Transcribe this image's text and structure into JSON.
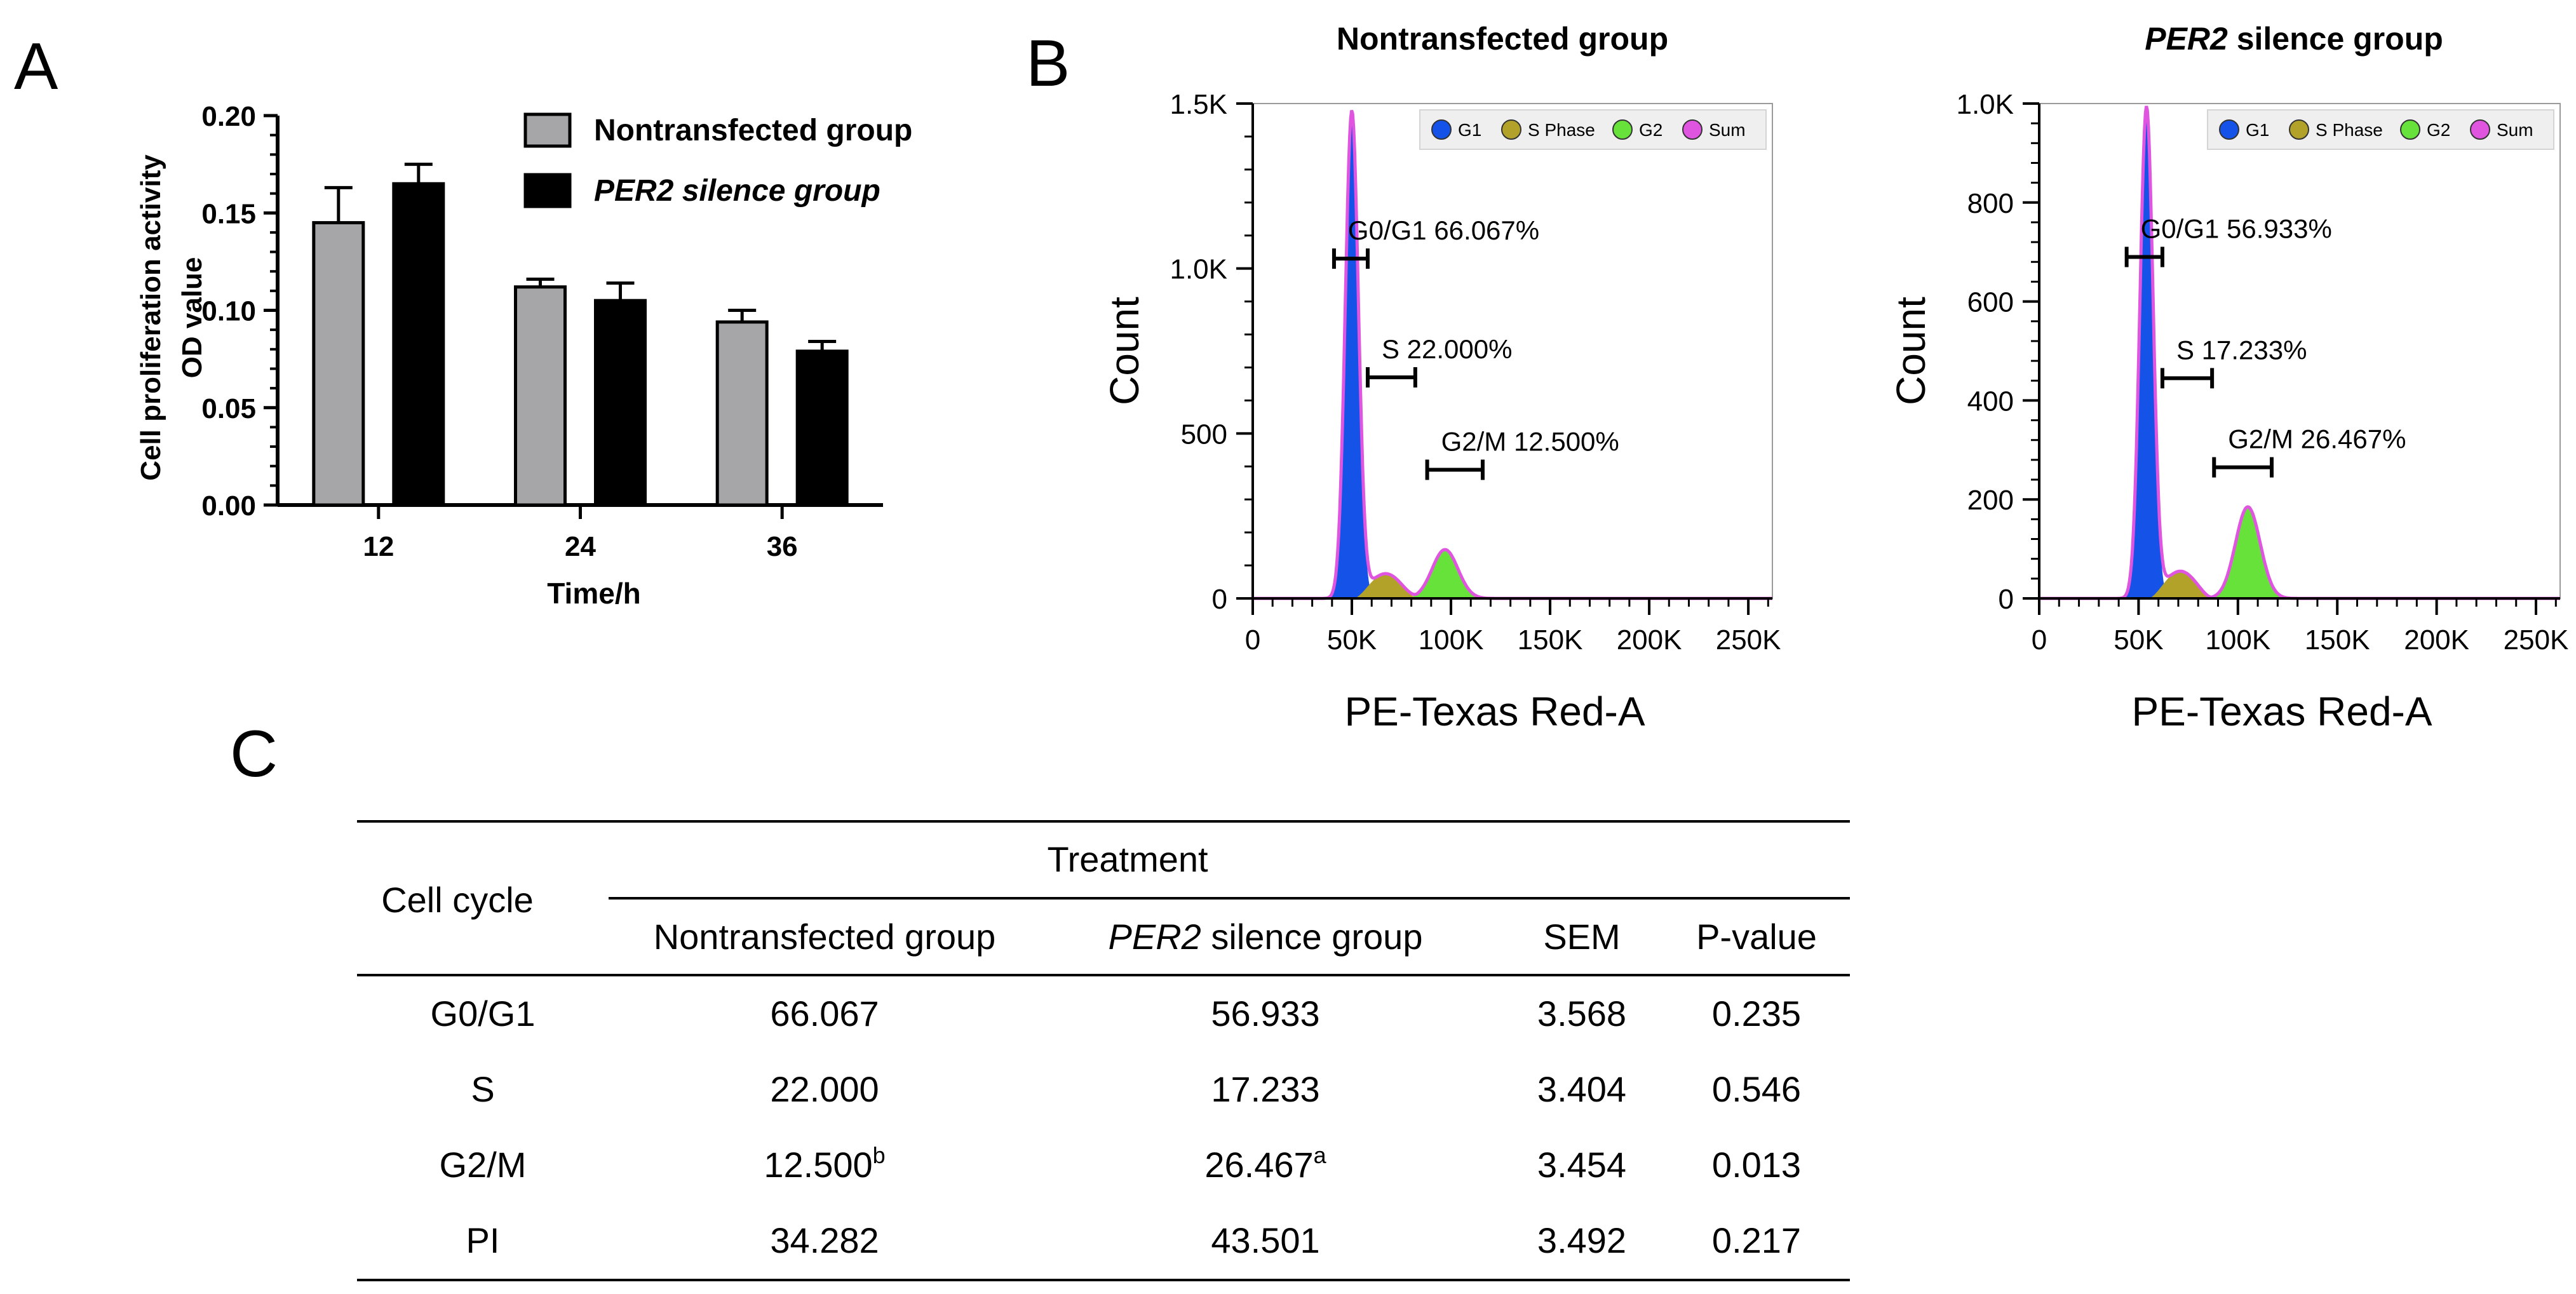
{
  "panels": {
    "a": "A",
    "b": "B",
    "c": "C"
  },
  "chart_data": [
    {
      "type": "bar",
      "panel": "A",
      "categories": [
        "12",
        "24",
        "36"
      ],
      "series": [
        {
          "name": "Nontransfected group",
          "values": [
            0.145,
            0.112,
            0.094
          ],
          "errors": [
            0.018,
            0.004,
            0.006
          ],
          "color": "#a6a6a8"
        },
        {
          "name": "PER2 silence group",
          "values": [
            0.165,
            0.105,
            0.079
          ],
          "errors": [
            0.01,
            0.009,
            0.005
          ],
          "color": "#000000"
        }
      ],
      "title": "",
      "xlabel": "Time/h",
      "ylabel_line1": "Cell proliferation activity",
      "ylabel_line2": "OD value",
      "ylim": [
        0,
        0.2
      ],
      "yticks": [
        "0.00",
        "0.05",
        "0.10",
        "0.15",
        "0.20"
      ],
      "legend_position": "top-right"
    },
    {
      "type": "area",
      "panel": "B-left",
      "title": "Nontransfected group",
      "xlabel": "PE-Texas Red-A",
      "ylabel": "Count",
      "xlim": [
        0,
        262144
      ],
      "ylim": [
        0,
        1500
      ],
      "xticks": [
        0,
        50000,
        100000,
        150000,
        200000,
        250000
      ],
      "xtick_labels": [
        "0",
        "50K",
        "100K",
        "150K",
        "200K",
        "250K"
      ],
      "yticks": [
        0,
        500,
        1000,
        1500
      ],
      "ytick_labels": [
        "0",
        "500",
        "1.0K",
        "1.5K"
      ],
      "legend": [
        "G1",
        "S Phase",
        "G2",
        "Sum"
      ],
      "g1": {
        "mean": 50000,
        "sd": 3300,
        "peak": 1480
      },
      "s": {
        "center": 67000,
        "halfwidth": 16000,
        "peak": 75
      },
      "g2": {
        "mean": 97000,
        "sd": 6500,
        "peak": 148
      },
      "annotations": [
        {
          "label": "G0/G1  66.067%",
          "x1": 41000,
          "x2": 58000,
          "y": 1030
        },
        {
          "label": "S 22.000%",
          "x1": 58000,
          "x2": 82000,
          "y": 670
        },
        {
          "label": "G2/M  12.500%",
          "x1": 88000,
          "x2": 116000,
          "y": 390
        }
      ]
    },
    {
      "type": "area",
      "panel": "B-right",
      "title_italic": "PER2",
      "title": " silence group",
      "xlabel": "PE-Texas Red-A",
      "ylabel": "Count",
      "xlim": [
        0,
        262144
      ],
      "ylim": [
        0,
        1000
      ],
      "xticks": [
        0,
        50000,
        100000,
        150000,
        200000,
        250000
      ],
      "xtick_labels": [
        "0",
        "50K",
        "100K",
        "150K",
        "200K",
        "250K"
      ],
      "yticks": [
        0,
        200,
        400,
        600,
        800,
        1000
      ],
      "ytick_labels": [
        "0",
        "200",
        "400",
        "600",
        "800",
        "1.0K"
      ],
      "legend": [
        "G1",
        "S Phase",
        "G2",
        "Sum"
      ],
      "g1": {
        "mean": 54000,
        "sd": 3300,
        "peak": 995
      },
      "s": {
        "center": 71000,
        "halfwidth": 16000,
        "peak": 55
      },
      "g2": {
        "mean": 105000,
        "sd": 6200,
        "peak": 185
      },
      "annotations": [
        {
          "label": "G0/G1  56.933%",
          "x1": 44000,
          "x2": 62000,
          "y": 690
        },
        {
          "label": "S 17.233%",
          "x1": 62000,
          "x2": 87000,
          "y": 445
        },
        {
          "label": "G2/M  26.467%",
          "x1": 88000,
          "x2": 117000,
          "y": 265
        }
      ]
    },
    {
      "type": "table",
      "panel": "C",
      "header_row_label": "Cell cycle",
      "group_header": "Treatment",
      "columns": [
        {
          "text": "Nontransfected group"
        },
        {
          "italic": "PER2",
          "text": " silence group"
        },
        {
          "text": "SEM"
        },
        {
          "text": "P-value"
        }
      ],
      "rows": [
        {
          "label": "G0/G1",
          "cells": [
            {
              "v": "66.067"
            },
            {
              "v": "56.933"
            },
            {
              "v": "3.568"
            },
            {
              "v": "0.235"
            }
          ]
        },
        {
          "label": "S",
          "cells": [
            {
              "v": "22.000"
            },
            {
              "v": "17.233"
            },
            {
              "v": "3.404"
            },
            {
              "v": "0.546"
            }
          ]
        },
        {
          "label": "G2/M",
          "cells": [
            {
              "v": "12.500",
              "sup": "b"
            },
            {
              "v": "26.467",
              "sup": "a"
            },
            {
              "v": "3.454"
            },
            {
              "v": "0.013"
            }
          ]
        },
        {
          "label": "PI",
          "cells": [
            {
              "v": "34.282"
            },
            {
              "v": "43.501"
            },
            {
              "v": "3.492"
            },
            {
              "v": "0.217"
            }
          ]
        }
      ]
    }
  ],
  "colors": {
    "g1": "#1452e8",
    "s_phase": "#b2a229",
    "g2": "#66e23a",
    "sum": "#e055e0",
    "gray_bar": "#a6a6a8",
    "black_bar": "#000000"
  }
}
